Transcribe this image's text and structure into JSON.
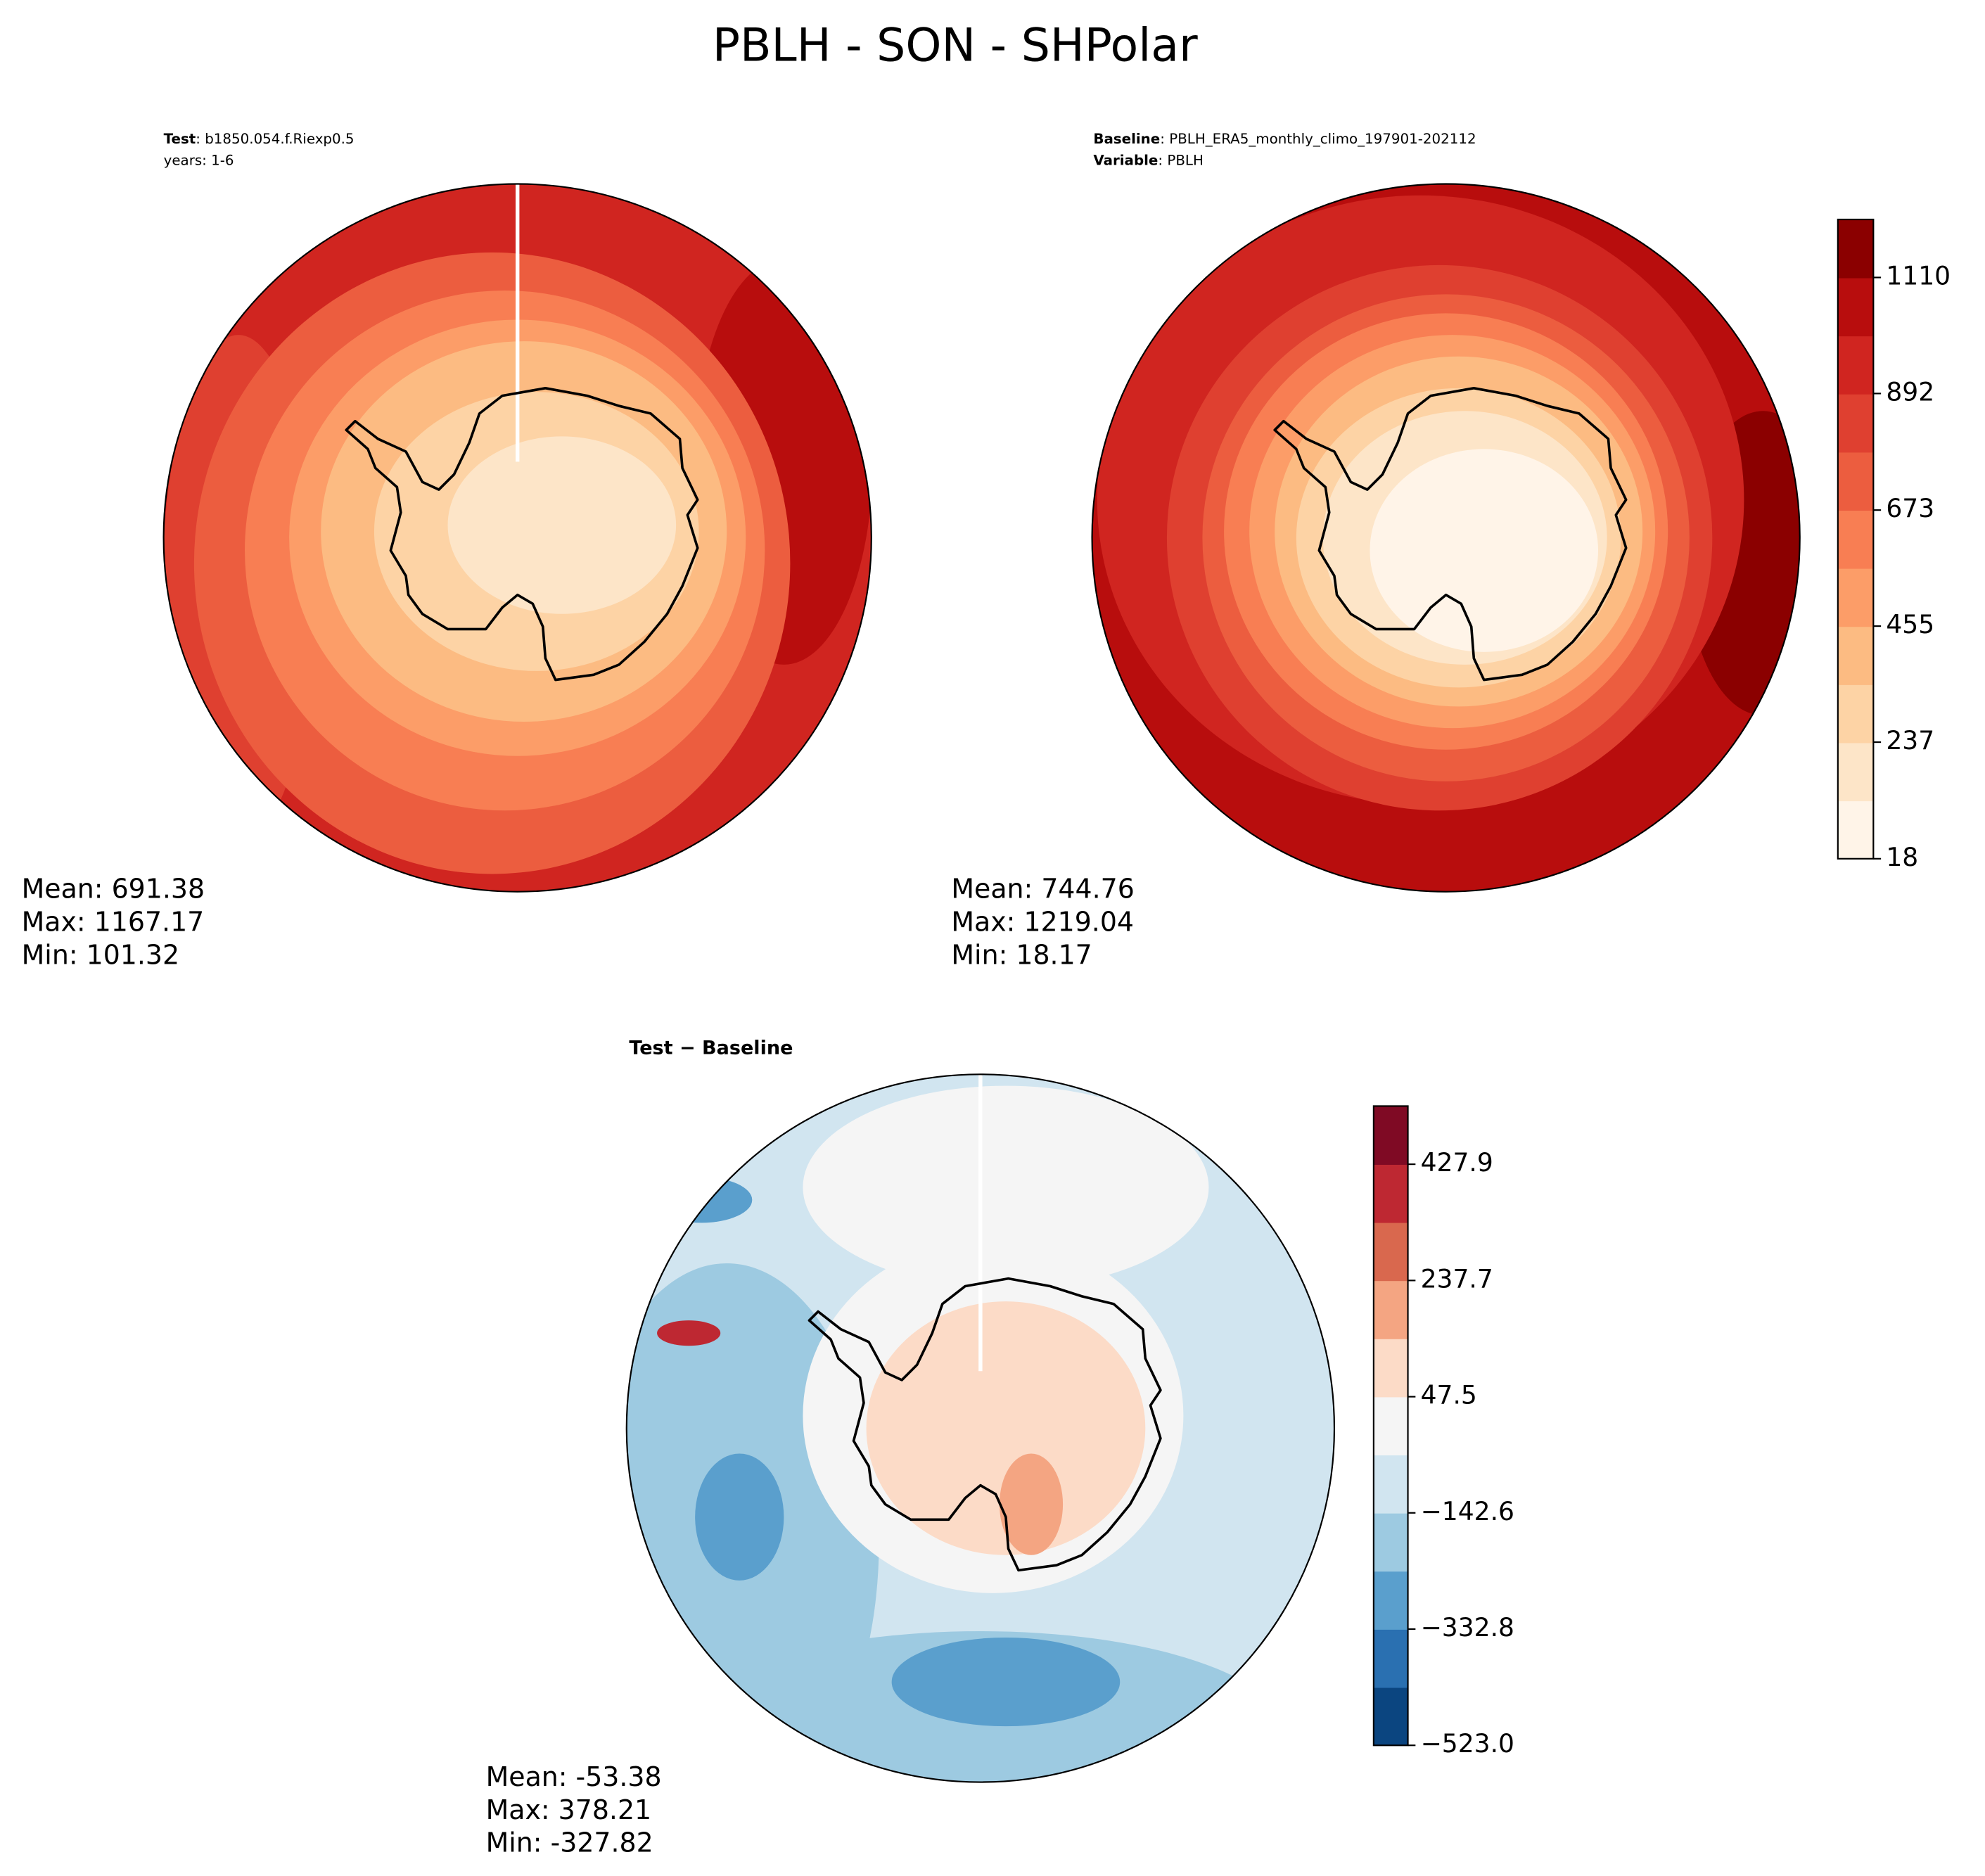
{
  "title": "PBLH - SON - SHPolar",
  "panels": [
    {
      "lines": [
        {
          "bold": "Test",
          "text": ": b1850.054.f.Riexp0.5"
        },
        {
          "text": "years: 1-6"
        }
      ],
      "stats": [
        "Mean: 691.38",
        "Max: 1167.17",
        "Min: 101.32"
      ]
    },
    {
      "lines": [
        {
          "bold": "Baseline",
          "text": ": PBLH_ERA5_monthly_climo_197901-202112"
        },
        {
          "bold": "Variable",
          "text": ": PBLH"
        }
      ],
      "stats": [
        "Mean: 744.76",
        "Max: 1219.04",
        "Min: 18.17"
      ]
    },
    {
      "lines": [
        {
          "bold": "Test − Baseline"
        }
      ],
      "stats": [
        "Mean: -53.38",
        "Max: 378.21",
        "Min: -327.82"
      ]
    }
  ],
  "colorbars": [
    {
      "lim": [
        18,
        1219
      ],
      "ticks": [
        18,
        237,
        455,
        673,
        892,
        1110
      ],
      "colors": [
        "#fff4e8",
        "#fde5c8",
        "#fdd3a5",
        "#fcbb82",
        "#fc9d68",
        "#f87e53",
        "#ec5d3f",
        "#df4030",
        "#d02520",
        "#b80d0d",
        "#8b0000"
      ]
    },
    {
      "lim": [
        -523,
        523.1
      ],
      "ticks": [
        {
          "value": -523,
          "label": "−523.0"
        },
        {
          "value": -332.8,
          "label": "−332.8"
        },
        {
          "value": -142.6,
          "label": "−142.6"
        },
        47.5,
        237.7,
        427.9
      ],
      "colors": [
        "#0b4580",
        "#2a70b1",
        "#5a9fcd",
        "#9dcae1",
        "#d1e5f0",
        "#f5f5f5",
        "#fcdbc7",
        "#f4a582",
        "#d9684e",
        "#be2832",
        "#7f0a24"
      ]
    }
  ]
}
